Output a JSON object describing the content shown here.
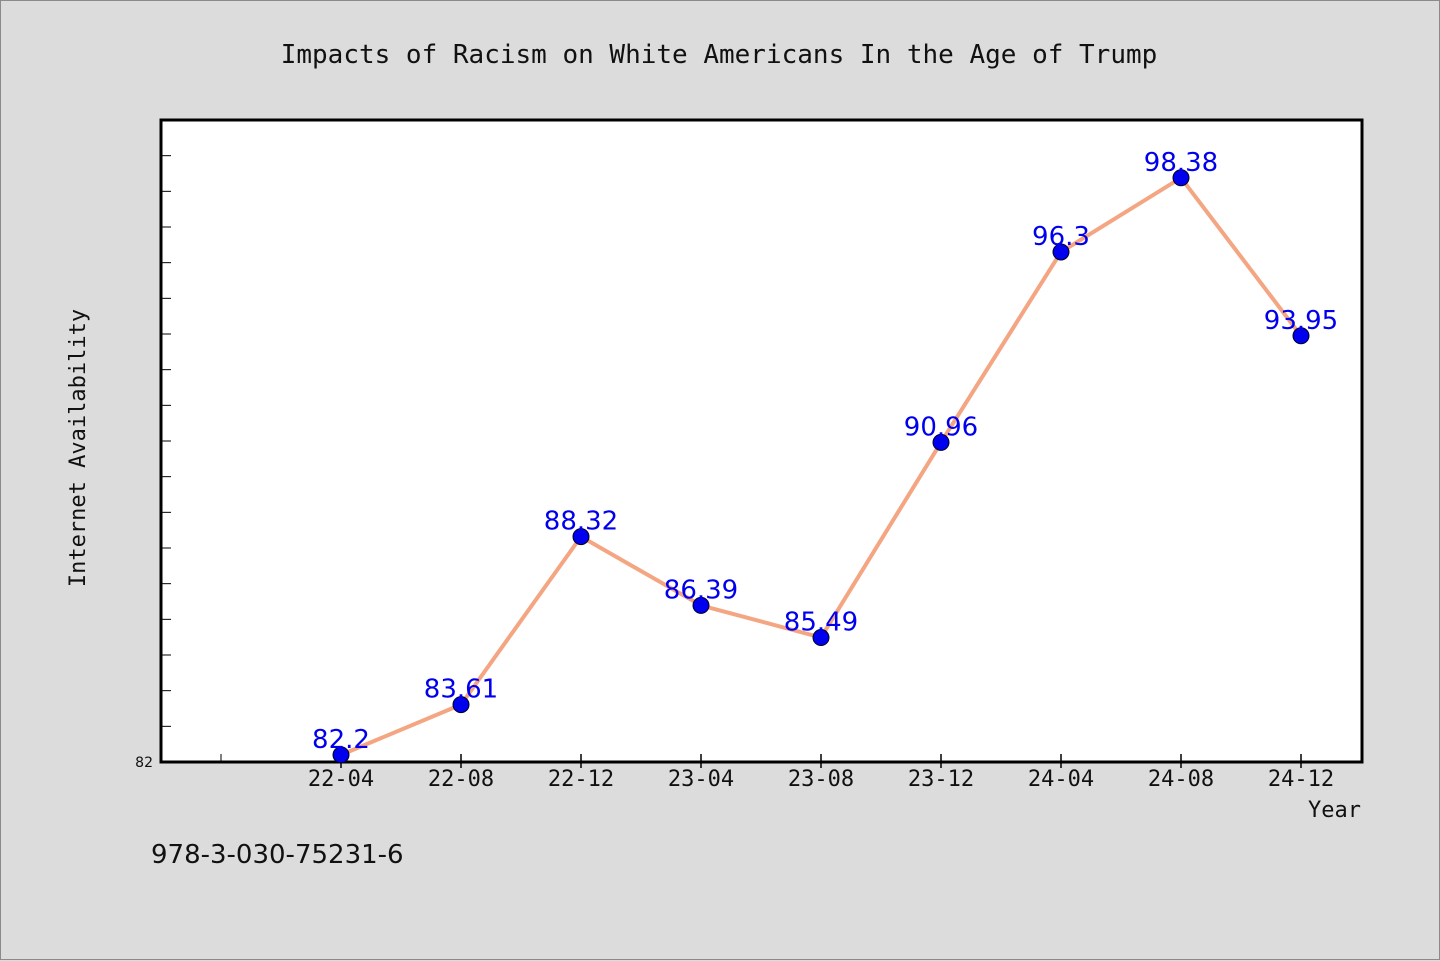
{
  "chart_data": {
    "type": "line",
    "title": "Impacts of Racism on White Americans In the Age of Trump",
    "xlabel": "Year",
    "ylabel": "Internet Availability",
    "categories": [
      "22-04",
      "22-08",
      "22-12",
      "23-04",
      "23-08",
      "23-12",
      "24-04",
      "24-08",
      "24-12"
    ],
    "series": [
      {
        "values": [
          82.2,
          83.61,
          88.32,
          86.39,
          85.49,
          90.96,
          96.3,
          98.38,
          93.95
        ],
        "data_labels": [
          "82.2",
          "83.61",
          "88.32",
          "86.39",
          "85.49",
          "90.96",
          "96.3",
          "98.38",
          "93.95"
        ],
        "line_color": "#f4a582",
        "marker_color": "#0000ee",
        "label_color": "#0000ee"
      }
    ],
    "ylim": [
      82,
      100
    ],
    "yticks_labeled": [
      "82"
    ],
    "grid": false,
    "legend": false
  },
  "footer_text": "978-3-030-75231-6",
  "colors": {
    "background": "#dcdcdc",
    "plot_background": "#ffffff",
    "axes_edge": "#000000"
  }
}
